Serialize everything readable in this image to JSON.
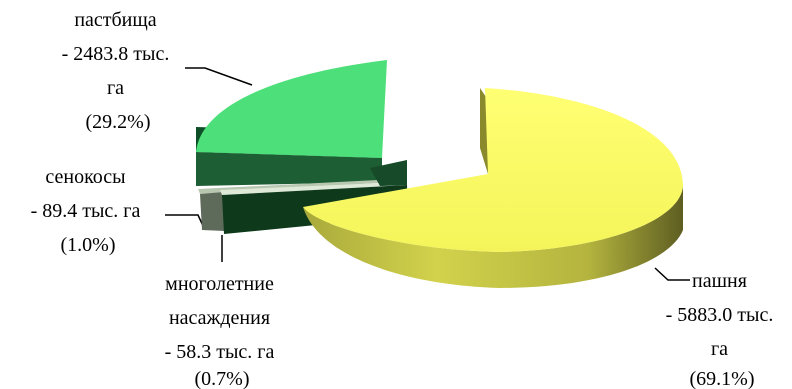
{
  "chart_data": {
    "type": "pie",
    "title": "",
    "style": "3d-exploded",
    "slices": [
      {
        "name": "пашня",
        "value": 5883.0,
        "percent": 69.1,
        "label_lines": [
          "пашня",
          "- 5883.0 тыс.",
          "га",
          "(69.1%)"
        ],
        "color": "#ffff66"
      },
      {
        "name": "многолетние насаждения",
        "value": 58.3,
        "percent": 0.7,
        "label_lines": [
          "многолетние",
          "насаждения",
          "- 58.3 тыс. га",
          "(0.7%)"
        ],
        "color": "#d9ead3"
      },
      {
        "name": "сенокосы",
        "value": 89.4,
        "percent": 1.0,
        "label_lines": [
          "сенокосы",
          "- 89.4 тыс. га",
          "(1.0%)"
        ],
        "color": "#6e7d6a"
      },
      {
        "name": "пастбища",
        "value": 2483.8,
        "percent": 29.2,
        "label_lines": [
          "пастбища",
          "- 2483.8 тыс.",
          "га",
          "(29.2%)"
        ],
        "color": "#4ddf7a"
      }
    ]
  }
}
